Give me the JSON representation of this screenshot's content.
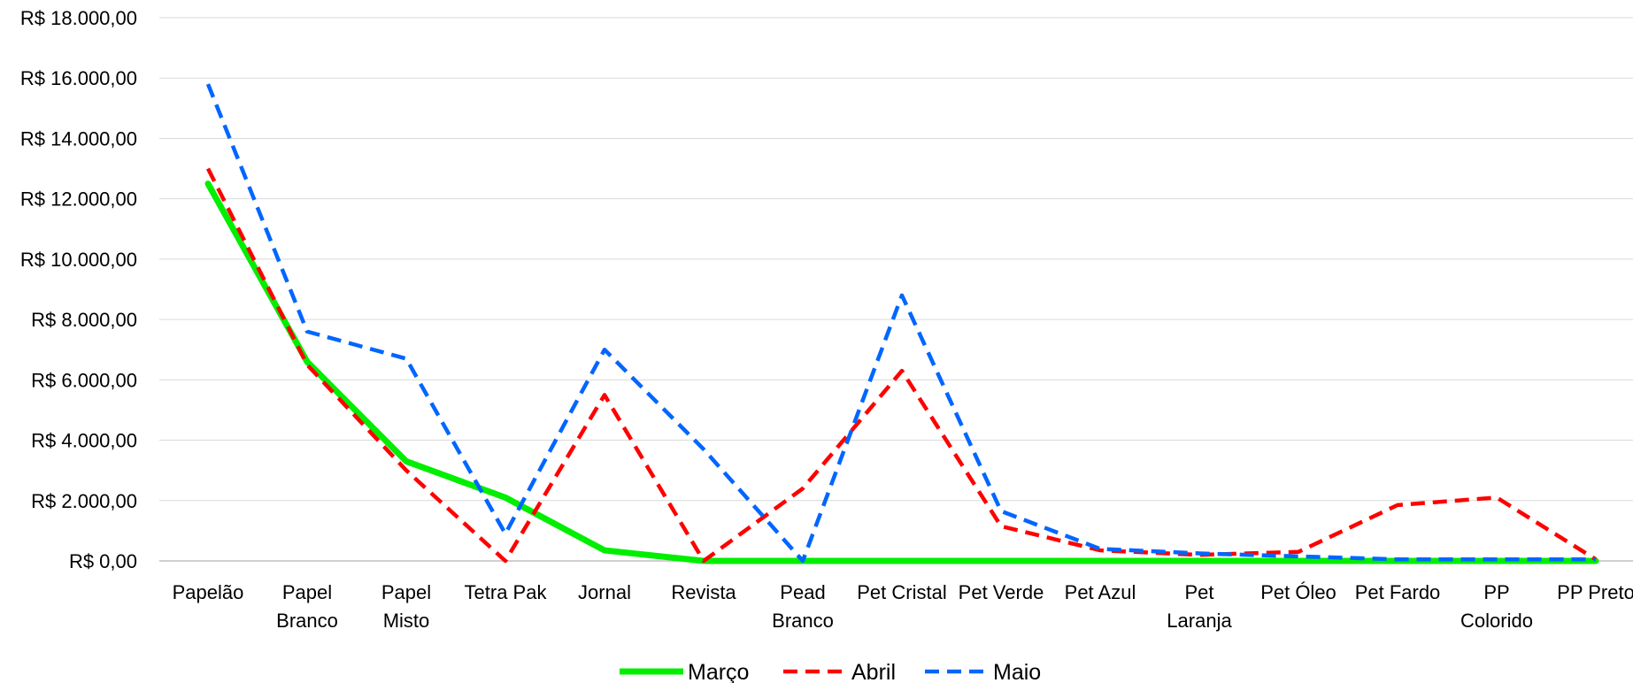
{
  "chart_data": {
    "type": "line",
    "categories": [
      "Papelão",
      "Papel Branco",
      "Papel Misto",
      "Tetra Pak",
      "Jornal",
      "Revista",
      "Pead Branco",
      "Pet Cristal",
      "Pet Verde",
      "Pet Azul",
      "Pet Laranja",
      "Pet Óleo",
      "Pet Fardo",
      "PP Colorido",
      "PP Preto"
    ],
    "series": [
      {
        "name": "Março",
        "color": "#00ee00",
        "style": "solid",
        "values": [
          12500,
          6600,
          3300,
          2100,
          350,
          0,
          0,
          0,
          0,
          0,
          0,
          0,
          0,
          0,
          0
        ]
      },
      {
        "name": "Abril",
        "color": "#ff0000",
        "style": "dashed",
        "values": [
          13000,
          6500,
          3000,
          0,
          5500,
          0,
          2400,
          6300,
          1150,
          350,
          200,
          300,
          1850,
          2100,
          50
        ]
      },
      {
        "name": "Maio",
        "color": "#0066ff",
        "style": "dashed",
        "values": [
          15800,
          7600,
          6700,
          900,
          7000,
          3700,
          0,
          8800,
          1650,
          400,
          250,
          150,
          50,
          50,
          50
        ]
      }
    ],
    "yticks": [
      "R$ 0,00",
      "R$ 2.000,00",
      "R$ 4.000,00",
      "R$ 6.000,00",
      "R$ 8.000,00",
      "R$ 10.000,00",
      "R$ 12.000,00",
      "R$ 14.000,00",
      "R$ 16.000,00",
      "R$ 18.000,00"
    ],
    "ylim": [
      0,
      18000
    ],
    "grid": true,
    "legend": "bottom"
  }
}
